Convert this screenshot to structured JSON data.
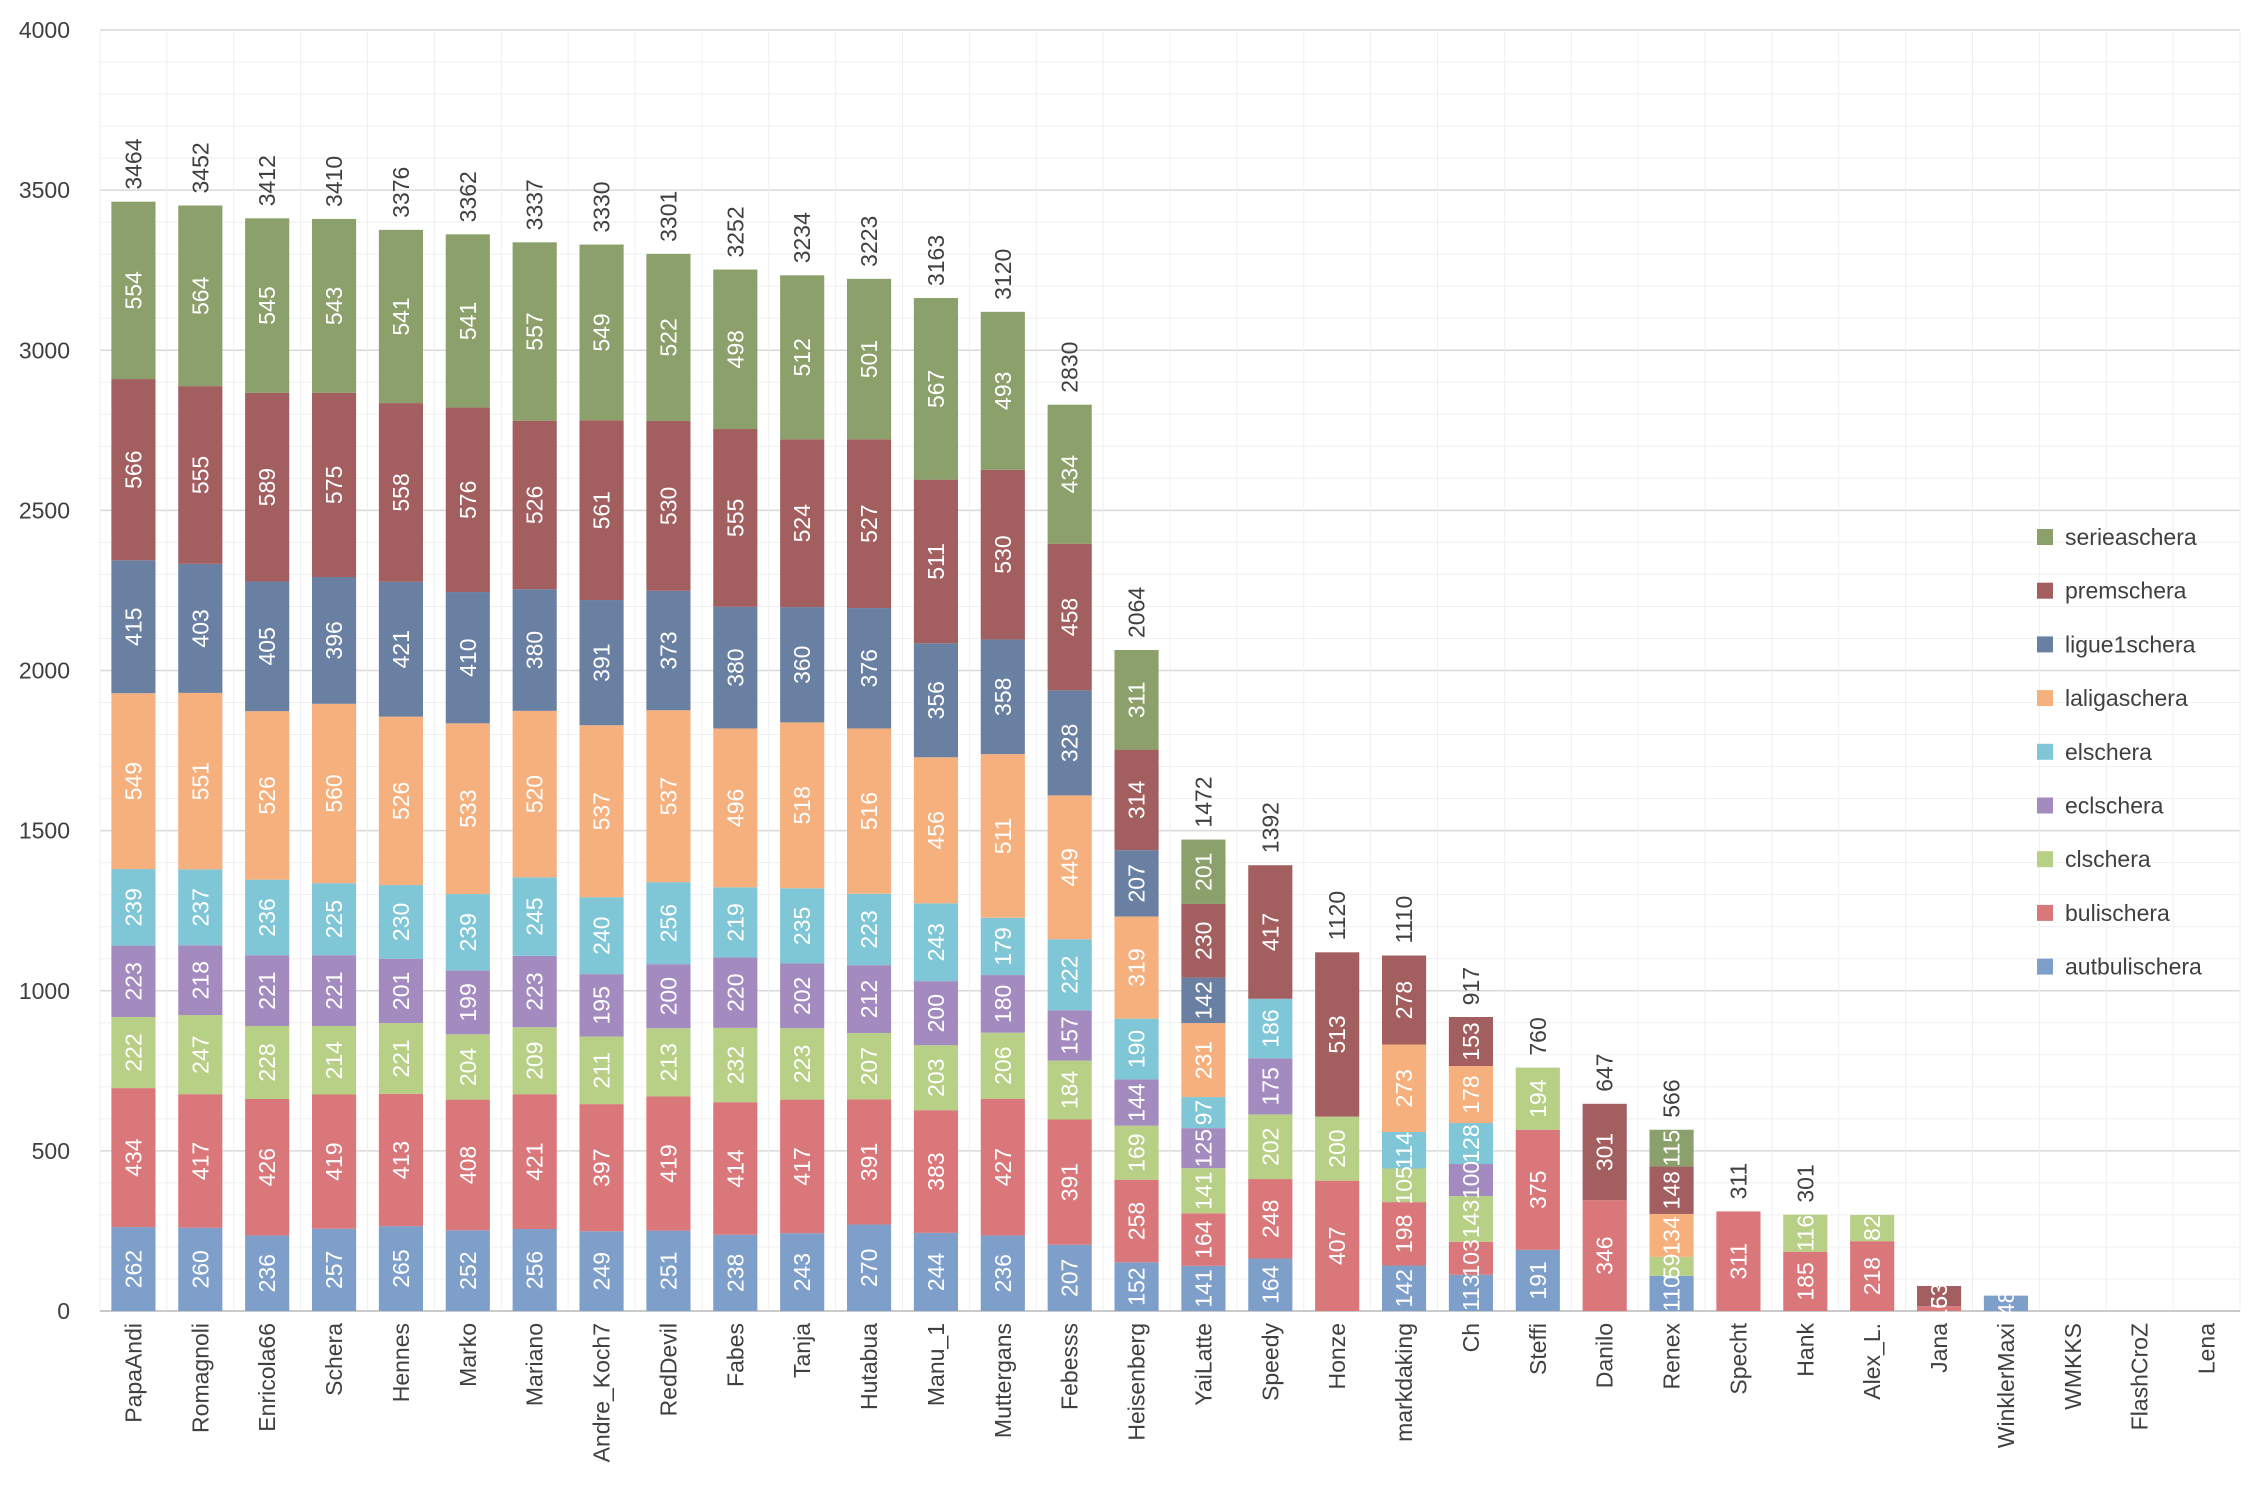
{
  "chart_data": {
    "type": "bar",
    "stacked": true,
    "ylim": [
      0,
      4000
    ],
    "yticks": [
      0,
      500,
      1000,
      1500,
      2000,
      2500,
      3000,
      3500,
      4000
    ],
    "grid": true,
    "legend_position": "right",
    "categories": [
      "PapaAndi",
      "Romagnoli",
      "Enricola66",
      "Schera",
      "Hennes",
      "Marko",
      "Mariano",
      "Andre_Koch7",
      "RedDevil",
      "Fabes",
      "Tanja",
      "Hutabua",
      "Manu_1",
      "Muttergans",
      "Febesss",
      "Heisenberg",
      "YaiLatte",
      "Speedy",
      "Honze",
      "markdaking",
      "Ch",
      "Steffi",
      "Danilo",
      "Renex",
      "Specht",
      "Hank",
      "Alex_L.",
      "Jana",
      "WinklerMaxi",
      "WMKKS",
      "FlashCroZ",
      "Lena"
    ],
    "totals": [
      3464,
      3452,
      3412,
      3410,
      3376,
      3362,
      3337,
      3330,
      3301,
      3252,
      3234,
      3223,
      3163,
      3120,
      2830,
      2064,
      1472,
      1392,
      1120,
      1110,
      917,
      760,
      647,
      566,
      311,
      301,
      null,
      null,
      null,
      null,
      null,
      null
    ],
    "series": [
      {
        "name": "autbulischera",
        "color": "#7f9fcb",
        "values": [
          262,
          260,
          236,
          257,
          265,
          252,
          256,
          249,
          251,
          238,
          243,
          270,
          244,
          236,
          207,
          152,
          141,
          164,
          0,
          142,
          113,
          191,
          0,
          110,
          0,
          0,
          0,
          0,
          48,
          0,
          0,
          0
        ]
      },
      {
        "name": "bulischera",
        "color": "#d9777a",
        "values": [
          434,
          417,
          426,
          419,
          413,
          408,
          421,
          397,
          419,
          414,
          417,
          391,
          383,
          427,
          391,
          258,
          164,
          248,
          407,
          198,
          103,
          375,
          346,
          0,
          311,
          185,
          218,
          15,
          0,
          0,
          0,
          0
        ]
      },
      {
        "name": "clschera",
        "color": "#b8cf86",
        "values": [
          222,
          247,
          228,
          214,
          221,
          204,
          209,
          211,
          213,
          232,
          223,
          207,
          203,
          206,
          184,
          169,
          141,
          202,
          200,
          105,
          143,
          194,
          0,
          59,
          0,
          116,
          82,
          0,
          0,
          0,
          0,
          0
        ]
      },
      {
        "name": "eclschera",
        "color": "#a48bbf",
        "values": [
          223,
          218,
          221,
          221,
          201,
          199,
          223,
          195,
          200,
          220,
          202,
          212,
          200,
          180,
          157,
          144,
          125,
          175,
          0,
          0,
          100,
          0,
          0,
          0,
          0,
          0,
          0,
          0,
          0,
          0,
          0,
          0
        ]
      },
      {
        "name": "elschera",
        "color": "#7fc7d6",
        "values": [
          239,
          237,
          236,
          225,
          230,
          239,
          245,
          240,
          256,
          219,
          235,
          223,
          243,
          179,
          222,
          190,
          97,
          186,
          0,
          114,
          128,
          0,
          0,
          0,
          0,
          0,
          0,
          0,
          0,
          0,
          0,
          0
        ]
      },
      {
        "name": "laligaschera",
        "color": "#f6b07d",
        "values": [
          549,
          551,
          526,
          560,
          526,
          533,
          520,
          537,
          537,
          496,
          518,
          516,
          456,
          511,
          449,
          319,
          231,
          0,
          0,
          273,
          178,
          0,
          0,
          134,
          0,
          0,
          0,
          0,
          0,
          0,
          0,
          0
        ]
      },
      {
        "name": "ligue1schera",
        "color": "#6a80a3",
        "values": [
          415,
          403,
          405,
          396,
          421,
          410,
          380,
          391,
          373,
          380,
          360,
          376,
          356,
          358,
          328,
          207,
          142,
          0,
          0,
          0,
          0,
          0,
          0,
          0,
          0,
          0,
          0,
          0,
          0,
          0,
          0,
          0
        ]
      },
      {
        "name": "premschera",
        "color": "#a35e5f",
        "values": [
          566,
          555,
          589,
          575,
          558,
          576,
          526,
          561,
          530,
          555,
          524,
          527,
          511,
          530,
          458,
          314,
          230,
          417,
          513,
          278,
          153,
          0,
          301,
          148,
          0,
          0,
          0,
          63,
          0,
          0,
          0,
          0
        ]
      },
      {
        "name": "serieaschera",
        "color": "#8ba06a",
        "values": [
          554,
          564,
          545,
          543,
          541,
          541,
          557,
          549,
          522,
          498,
          512,
          501,
          567,
          493,
          434,
          311,
          201,
          0,
          0,
          0,
          0,
          0,
          0,
          115,
          0,
          0,
          0,
          0,
          0,
          0,
          0,
          0
        ]
      }
    ]
  }
}
